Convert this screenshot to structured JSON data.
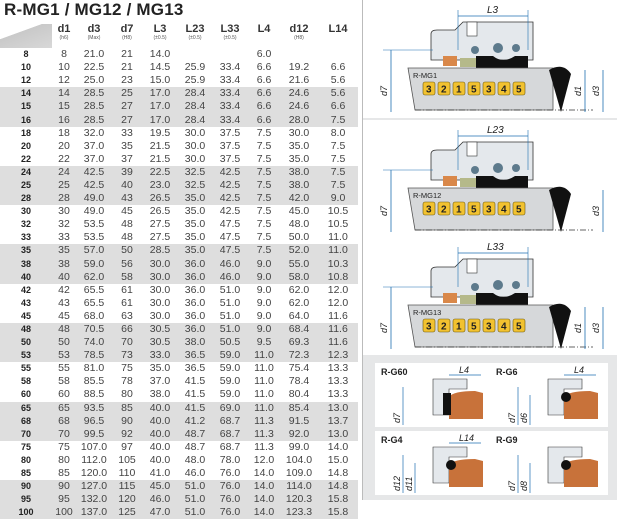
{
  "title": "R-MG1 / MG12 / MG13",
  "columns": [
    {
      "label": "d1",
      "sub": "(h6)"
    },
    {
      "label": "d3",
      "sub": "(Max)"
    },
    {
      "label": "d7",
      "sub": "(H8)"
    },
    {
      "label": "L3",
      "sub": "(±0.5)"
    },
    {
      "label": "L23",
      "sub": "(±0.5)"
    },
    {
      "label": "L33",
      "sub": "(±0.5)"
    },
    {
      "label": "L4",
      "sub": ""
    },
    {
      "label": "d12",
      "sub": "(H8)"
    },
    {
      "label": "L14",
      "sub": ""
    }
  ],
  "rows": [
    [
      "8",
      "8",
      "21.0",
      "21",
      "14.0",
      "",
      "",
      "6.0",
      "",
      ""
    ],
    [
      "10",
      "10",
      "22.5",
      "21",
      "14.5",
      "25.9",
      "33.4",
      "6.6",
      "19.2",
      "6.6"
    ],
    [
      "12",
      "12",
      "25.0",
      "23",
      "15.0",
      "25.9",
      "33.4",
      "6.6",
      "21.6",
      "5.6"
    ],
    [
      "14",
      "14",
      "28.5",
      "25",
      "17.0",
      "28.4",
      "33.4",
      "6.6",
      "24.6",
      "5.6"
    ],
    [
      "15",
      "15",
      "28.5",
      "27",
      "17.0",
      "28.4",
      "33.4",
      "6.6",
      "24.6",
      "6.6"
    ],
    [
      "16",
      "16",
      "28.5",
      "27",
      "17.0",
      "28.4",
      "33.4",
      "6.6",
      "28.0",
      "7.5"
    ],
    [
      "18",
      "18",
      "32.0",
      "33",
      "19.5",
      "30.0",
      "37.5",
      "7.5",
      "30.0",
      "8.0"
    ],
    [
      "20",
      "20",
      "37.0",
      "35",
      "21.5",
      "30.0",
      "37.5",
      "7.5",
      "35.0",
      "7.5"
    ],
    [
      "22",
      "22",
      "37.0",
      "37",
      "21.5",
      "30.0",
      "37.5",
      "7.5",
      "35.0",
      "7.5"
    ],
    [
      "24",
      "24",
      "42.5",
      "39",
      "22.5",
      "32.5",
      "42.5",
      "7.5",
      "38.0",
      "7.5"
    ],
    [
      "25",
      "25",
      "42.5",
      "40",
      "23.0",
      "32.5",
      "42.5",
      "7.5",
      "38.0",
      "7.5"
    ],
    [
      "28",
      "28",
      "49.0",
      "43",
      "26.5",
      "35.0",
      "42.5",
      "7.5",
      "42.0",
      "9.0"
    ],
    [
      "30",
      "30",
      "49.0",
      "45",
      "26.5",
      "35.0",
      "42.5",
      "7.5",
      "45.0",
      "10.5"
    ],
    [
      "32",
      "32",
      "53.5",
      "48",
      "27.5",
      "35.0",
      "47.5",
      "7.5",
      "48.0",
      "10.5"
    ],
    [
      "33",
      "33",
      "53.5",
      "48",
      "27.5",
      "35.0",
      "47.5",
      "7.5",
      "50.0",
      "11.0"
    ],
    [
      "35",
      "35",
      "57.0",
      "50",
      "28.5",
      "35.0",
      "47.5",
      "7.5",
      "52.0",
      "11.0"
    ],
    [
      "38",
      "38",
      "59.0",
      "56",
      "30.0",
      "36.0",
      "46.0",
      "9.0",
      "55.0",
      "10.3"
    ],
    [
      "40",
      "40",
      "62.0",
      "58",
      "30.0",
      "36.0",
      "46.0",
      "9.0",
      "58.0",
      "10.8"
    ],
    [
      "42",
      "42",
      "65.5",
      "61",
      "30.0",
      "36.0",
      "51.0",
      "9.0",
      "62.0",
      "12.0"
    ],
    [
      "43",
      "43",
      "65.5",
      "61",
      "30.0",
      "36.0",
      "51.0",
      "9.0",
      "62.0",
      "12.0"
    ],
    [
      "45",
      "45",
      "68.0",
      "63",
      "30.0",
      "36.0",
      "51.0",
      "9.0",
      "64.0",
      "11.6"
    ],
    [
      "48",
      "48",
      "70.5",
      "66",
      "30.5",
      "36.0",
      "51.0",
      "9.0",
      "68.4",
      "11.6"
    ],
    [
      "50",
      "50",
      "74.0",
      "70",
      "30.5",
      "38.0",
      "50.5",
      "9.5",
      "69.3",
      "11.6"
    ],
    [
      "53",
      "53",
      "78.5",
      "73",
      "33.0",
      "36.5",
      "59.0",
      "11.0",
      "72.3",
      "12.3"
    ],
    [
      "55",
      "55",
      "81.0",
      "75",
      "35.0",
      "36.5",
      "59.0",
      "11.0",
      "75.4",
      "13.3"
    ],
    [
      "58",
      "58",
      "85.5",
      "78",
      "37.0",
      "41.5",
      "59.0",
      "11.0",
      "78.4",
      "13.3"
    ],
    [
      "60",
      "60",
      "88.5",
      "80",
      "38.0",
      "41.5",
      "59.0",
      "11.0",
      "80.4",
      "13.3"
    ],
    [
      "65",
      "65",
      "93.5",
      "85",
      "40.0",
      "41.5",
      "69.0",
      "11.0",
      "85.4",
      "13.0"
    ],
    [
      "68",
      "68",
      "96.5",
      "90",
      "40.0",
      "41.2",
      "68.7",
      "11.3",
      "91.5",
      "13.7"
    ],
    [
      "70",
      "70",
      "99.5",
      "92",
      "40.0",
      "48.7",
      "68.7",
      "11.3",
      "92.0",
      "13.0"
    ],
    [
      "75",
      "75",
      "107.0",
      "97",
      "40.0",
      "48.7",
      "68.7",
      "11.3",
      "99.0",
      "14.0"
    ],
    [
      "80",
      "80",
      "112.0",
      "105",
      "40.0",
      "48.0",
      "78.0",
      "12.0",
      "104.0",
      "15.0"
    ],
    [
      "85",
      "85",
      "120.0",
      "110",
      "41.0",
      "46.0",
      "76.0",
      "14.0",
      "109.0",
      "14.8"
    ],
    [
      "90",
      "90",
      "127.0",
      "115",
      "45.0",
      "51.0",
      "76.0",
      "14.0",
      "114.0",
      "14.8"
    ],
    [
      "95",
      "95",
      "132.0",
      "120",
      "46.0",
      "51.0",
      "76.0",
      "14.0",
      "120.3",
      "15.8"
    ],
    [
      "100",
      "100",
      "137.0",
      "125",
      "47.0",
      "51.0",
      "76.0",
      "14.0",
      "123.3",
      "15.8"
    ]
  ],
  "diagrams": [
    {
      "name": "R-MG1",
      "length_label": "L3",
      "dims": [
        "d7",
        "d1",
        "d3"
      ],
      "parts": [
        "3",
        "2",
        "1",
        "5",
        "3",
        "4",
        "5"
      ]
    },
    {
      "name": "R-MG12",
      "length_label": "L23",
      "dims": [
        "d7",
        "d3"
      ],
      "parts": [
        "3",
        "2",
        "1",
        "5",
        "3",
        "4",
        "5"
      ]
    },
    {
      "name": "R-MG13",
      "length_label": "L33",
      "dims": [
        "d7",
        "d1",
        "d3"
      ],
      "parts": [
        "3",
        "2",
        "1",
        "5",
        "3",
        "4",
        "5"
      ]
    }
  ],
  "seats": [
    {
      "name": "R-G60",
      "length_label": "L4",
      "dims": [
        "d7"
      ]
    },
    {
      "name": "R-G6",
      "length_label": "L4",
      "dims": [
        "d7",
        "d6"
      ]
    },
    {
      "name": "R-G4",
      "length_label": "L14",
      "dims": [
        "d12",
        "d11"
      ]
    },
    {
      "name": "R-G9",
      "length_label": "",
      "dims": [
        "d7",
        "d8"
      ]
    }
  ],
  "colors": {
    "band": "#dedede",
    "badge": "#f2c230",
    "seat": "#c8723a",
    "elastomer": "#111111"
  }
}
